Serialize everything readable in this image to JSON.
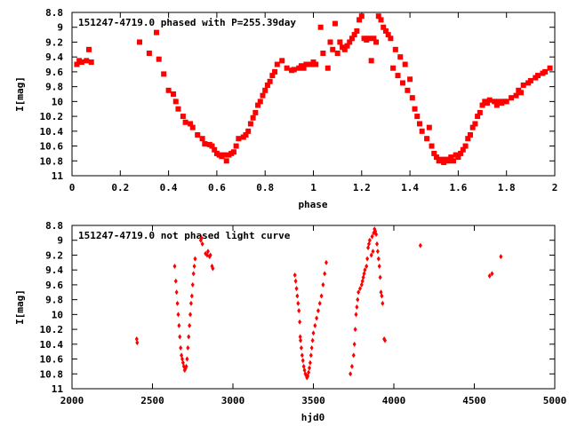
{
  "colors": {
    "points": "#ff0000",
    "axes": "#000000",
    "background": "#ffffff"
  },
  "chart_data": [
    {
      "type": "scatter",
      "title": "151247-4719.0 phased with P=255.39day",
      "xlabel": "phase",
      "ylabel": "I[mag]",
      "xlim": [
        0,
        2
      ],
      "ylim": [
        8.8,
        11
      ],
      "y_inverted": true,
      "grid": false,
      "xticks": [
        "0",
        "0.2",
        "0.4",
        "0.6",
        "0.8",
        "1",
        "1.2",
        "1.4",
        "1.6",
        "1.8",
        "2"
      ],
      "yticks": [
        "8.8",
        "9",
        "9.2",
        "9.4",
        "9.6",
        "9.8",
        "10",
        "10.2",
        "10.4",
        "10.6",
        "10.8",
        "11"
      ],
      "series": [
        {
          "marker": "filled-square",
          "points": [
            [
              0.02,
              9.5
            ],
            [
              0.03,
              9.45
            ],
            [
              0.04,
              9.47
            ],
            [
              0.06,
              9.45
            ],
            [
              0.07,
              9.3
            ],
            [
              0.08,
              9.47
            ],
            [
              0.28,
              9.2
            ],
            [
              0.32,
              9.35
            ],
            [
              0.35,
              9.07
            ],
            [
              0.36,
              9.43
            ],
            [
              0.38,
              9.63
            ],
            [
              0.4,
              9.85
            ],
            [
              0.42,
              9.9
            ],
            [
              0.43,
              10.0
            ],
            [
              0.44,
              10.1
            ],
            [
              0.46,
              10.2
            ],
            [
              0.47,
              10.28
            ],
            [
              0.49,
              10.3
            ],
            [
              0.5,
              10.35
            ],
            [
              0.52,
              10.45
            ],
            [
              0.54,
              10.5
            ],
            [
              0.55,
              10.57
            ],
            [
              0.57,
              10.58
            ],
            [
              0.58,
              10.6
            ],
            [
              0.59,
              10.65
            ],
            [
              0.6,
              10.7
            ],
            [
              0.61,
              10.72
            ],
            [
              0.62,
              10.74
            ],
            [
              0.63,
              10.72
            ],
            [
              0.64,
              10.8
            ],
            [
              0.65,
              10.72
            ],
            [
              0.66,
              10.7
            ],
            [
              0.67,
              10.68
            ],
            [
              0.68,
              10.6
            ],
            [
              0.69,
              10.5
            ],
            [
              0.71,
              10.48
            ],
            [
              0.72,
              10.45
            ],
            [
              0.73,
              10.4
            ],
            [
              0.74,
              10.3
            ],
            [
              0.75,
              10.22
            ],
            [
              0.76,
              10.15
            ],
            [
              0.77,
              10.05
            ],
            [
              0.78,
              10.0
            ],
            [
              0.79,
              9.92
            ],
            [
              0.8,
              9.85
            ],
            [
              0.81,
              9.78
            ],
            [
              0.82,
              9.73
            ],
            [
              0.83,
              9.65
            ],
            [
              0.84,
              9.6
            ],
            [
              0.85,
              9.5
            ],
            [
              0.87,
              9.45
            ],
            [
              0.89,
              9.55
            ],
            [
              0.91,
              9.58
            ],
            [
              0.92,
              9.57
            ],
            [
              0.94,
              9.55
            ],
            [
              0.95,
              9.52
            ],
            [
              0.96,
              9.55
            ],
            [
              0.97,
              9.5
            ],
            [
              0.99,
              9.5
            ],
            [
              1.0,
              9.47
            ],
            [
              1.01,
              9.5
            ],
            [
              1.03,
              9.0
            ],
            [
              1.04,
              9.35
            ],
            [
              1.06,
              9.55
            ],
            [
              1.07,
              9.2
            ],
            [
              1.08,
              9.3
            ],
            [
              1.09,
              8.95
            ],
            [
              1.1,
              9.35
            ],
            [
              1.11,
              9.2
            ],
            [
              1.12,
              9.27
            ],
            [
              1.13,
              9.3
            ],
            [
              1.14,
              9.25
            ],
            [
              1.15,
              9.2
            ],
            [
              1.16,
              9.15
            ],
            [
              1.17,
              9.1
            ],
            [
              1.18,
              9.05
            ],
            [
              1.19,
              8.9
            ],
            [
              1.2,
              8.85
            ],
            [
              1.21,
              9.15
            ],
            [
              1.22,
              9.17
            ],
            [
              1.23,
              9.15
            ],
            [
              1.24,
              9.45
            ],
            [
              1.25,
              9.15
            ],
            [
              1.26,
              9.2
            ],
            [
              1.27,
              8.85
            ],
            [
              1.28,
              8.9
            ],
            [
              1.29,
              9.0
            ],
            [
              1.3,
              9.05
            ],
            [
              1.31,
              9.1
            ],
            [
              1.32,
              9.15
            ],
            [
              1.33,
              9.55
            ],
            [
              1.34,
              9.3
            ],
            [
              1.35,
              9.65
            ],
            [
              1.36,
              9.4
            ],
            [
              1.37,
              9.75
            ],
            [
              1.38,
              9.5
            ],
            [
              1.39,
              9.85
            ],
            [
              1.4,
              9.7
            ],
            [
              1.41,
              9.95
            ],
            [
              1.42,
              10.1
            ],
            [
              1.43,
              10.2
            ],
            [
              1.44,
              10.3
            ],
            [
              1.45,
              10.4
            ],
            [
              1.47,
              10.5
            ],
            [
              1.48,
              10.35
            ],
            [
              1.49,
              10.6
            ],
            [
              1.5,
              10.7
            ],
            [
              1.51,
              10.75
            ],
            [
              1.52,
              10.8
            ],
            [
              1.53,
              10.78
            ],
            [
              1.54,
              10.82
            ],
            [
              1.55,
              10.78
            ],
            [
              1.56,
              10.8
            ],
            [
              1.57,
              10.75
            ],
            [
              1.58,
              10.8
            ],
            [
              1.59,
              10.72
            ],
            [
              1.6,
              10.75
            ],
            [
              1.61,
              10.7
            ],
            [
              1.62,
              10.65
            ],
            [
              1.63,
              10.6
            ],
            [
              1.64,
              10.5
            ],
            [
              1.65,
              10.45
            ],
            [
              1.66,
              10.35
            ],
            [
              1.67,
              10.3
            ],
            [
              1.68,
              10.2
            ],
            [
              1.69,
              10.15
            ],
            [
              1.7,
              10.05
            ],
            [
              1.71,
              10.0
            ],
            [
              1.72,
              10.02
            ],
            [
              1.73,
              9.98
            ],
            [
              1.75,
              10.0
            ],
            [
              1.76,
              10.05
            ],
            [
              1.77,
              10.0
            ],
            [
              1.78,
              10.02
            ],
            [
              1.79,
              10.0
            ],
            [
              1.8,
              10.0
            ],
            [
              1.82,
              9.95
            ],
            [
              1.84,
              9.92
            ],
            [
              1.85,
              9.85
            ],
            [
              1.86,
              9.88
            ],
            [
              1.87,
              9.78
            ],
            [
              1.89,
              9.75
            ],
            [
              1.9,
              9.72
            ],
            [
              1.92,
              9.68
            ],
            [
              1.93,
              9.65
            ],
            [
              1.95,
              9.62
            ],
            [
              1.96,
              9.6
            ],
            [
              1.98,
              9.55
            ]
          ]
        }
      ]
    },
    {
      "type": "scatter",
      "title": "151247-4719.0 not phased light curve",
      "xlabel": "hjd0",
      "ylabel": "I[mag]",
      "xlim": [
        2000,
        5000
      ],
      "ylim": [
        8.8,
        11
      ],
      "y_inverted": true,
      "grid": false,
      "xticks": [
        "2000",
        "2500",
        "3000",
        "3500",
        "4000",
        "4500",
        "5000"
      ],
      "yticks": [
        "8.8",
        "9",
        "9.2",
        "9.4",
        "9.6",
        "9.8",
        "10",
        "10.2",
        "10.4",
        "10.6",
        "10.8",
        "11"
      ],
      "series": [
        {
          "marker": "filled-diamond",
          "points": [
            [
              2402,
              10.33
            ],
            [
              2405,
              10.38
            ],
            [
              2638,
              9.35
            ],
            [
              2645,
              9.55
            ],
            [
              2650,
              9.7
            ],
            [
              2655,
              9.85
            ],
            [
              2660,
              10.0
            ],
            [
              2665,
              10.15
            ],
            [
              2670,
              10.3
            ],
            [
              2675,
              10.45
            ],
            [
              2680,
              10.55
            ],
            [
              2685,
              10.6
            ],
            [
              2690,
              10.65
            ],
            [
              2695,
              10.7
            ],
            [
              2700,
              10.75
            ],
            [
              2705,
              10.73
            ],
            [
              2710,
              10.7
            ],
            [
              2715,
              10.6
            ],
            [
              2720,
              10.45
            ],
            [
              2725,
              10.3
            ],
            [
              2730,
              10.15
            ],
            [
              2735,
              10.0
            ],
            [
              2740,
              9.85
            ],
            [
              2745,
              9.75
            ],
            [
              2750,
              9.6
            ],
            [
              2755,
              9.45
            ],
            [
              2760,
              9.35
            ],
            [
              2765,
              9.25
            ],
            [
              2800,
              9.0
            ],
            [
              2805,
              8.97
            ],
            [
              2810,
              9.05
            ],
            [
              2830,
              9.18
            ],
            [
              2840,
              9.2
            ],
            [
              2845,
              9.15
            ],
            [
              2855,
              9.22
            ],
            [
              2860,
              9.2
            ],
            [
              2870,
              9.35
            ],
            [
              2875,
              9.38
            ],
            [
              3385,
              9.47
            ],
            [
              3390,
              9.55
            ],
            [
              3395,
              9.65
            ],
            [
              3400,
              9.75
            ],
            [
              3405,
              9.85
            ],
            [
              3410,
              9.95
            ],
            [
              3415,
              10.1
            ],
            [
              3418,
              10.3
            ],
            [
              3420,
              10.35
            ],
            [
              3425,
              10.45
            ],
            [
              3430,
              10.55
            ],
            [
              3435,
              10.62
            ],
            [
              3440,
              10.7
            ],
            [
              3445,
              10.75
            ],
            [
              3450,
              10.8
            ],
            [
              3455,
              10.82
            ],
            [
              3460,
              10.85
            ],
            [
              3465,
              10.83
            ],
            [
              3470,
              10.78
            ],
            [
              3475,
              10.72
            ],
            [
              3480,
              10.65
            ],
            [
              3485,
              10.55
            ],
            [
              3490,
              10.45
            ],
            [
              3495,
              10.35
            ],
            [
              3500,
              10.25
            ],
            [
              3510,
              10.15
            ],
            [
              3520,
              10.05
            ],
            [
              3530,
              9.95
            ],
            [
              3540,
              9.85
            ],
            [
              3550,
              9.75
            ],
            [
              3560,
              9.6
            ],
            [
              3570,
              9.45
            ],
            [
              3580,
              9.3
            ],
            [
              3730,
              10.8
            ],
            [
              3740,
              10.7
            ],
            [
              3750,
              10.55
            ],
            [
              3755,
              10.4
            ],
            [
              3760,
              10.2
            ],
            [
              3765,
              10.0
            ],
            [
              3770,
              9.9
            ],
            [
              3775,
              9.8
            ],
            [
              3780,
              9.7
            ],
            [
              3790,
              9.65
            ],
            [
              3800,
              9.6
            ],
            [
              3805,
              9.55
            ],
            [
              3810,
              9.5
            ],
            [
              3815,
              9.45
            ],
            [
              3820,
              9.4
            ],
            [
              3830,
              9.35
            ],
            [
              3835,
              9.25
            ],
            [
              3840,
              9.1
            ],
            [
              3845,
              9.05
            ],
            [
              3850,
              9.0
            ],
            [
              3860,
              9.2
            ],
            [
              3865,
              8.95
            ],
            [
              3870,
              9.15
            ],
            [
              3875,
              8.9
            ],
            [
              3880,
              8.85
            ],
            [
              3885,
              8.88
            ],
            [
              3890,
              8.92
            ],
            [
              3895,
              9.05
            ],
            [
              3900,
              9.15
            ],
            [
              3905,
              9.25
            ],
            [
              3910,
              9.35
            ],
            [
              3915,
              9.5
            ],
            [
              3920,
              9.7
            ],
            [
              3925,
              9.75
            ],
            [
              3930,
              9.85
            ],
            [
              3940,
              10.33
            ],
            [
              3945,
              10.35
            ],
            [
              4165,
              9.07
            ],
            [
              4595,
              9.48
            ],
            [
              4610,
              9.45
            ],
            [
              4665,
              9.22
            ]
          ]
        }
      ]
    }
  ]
}
